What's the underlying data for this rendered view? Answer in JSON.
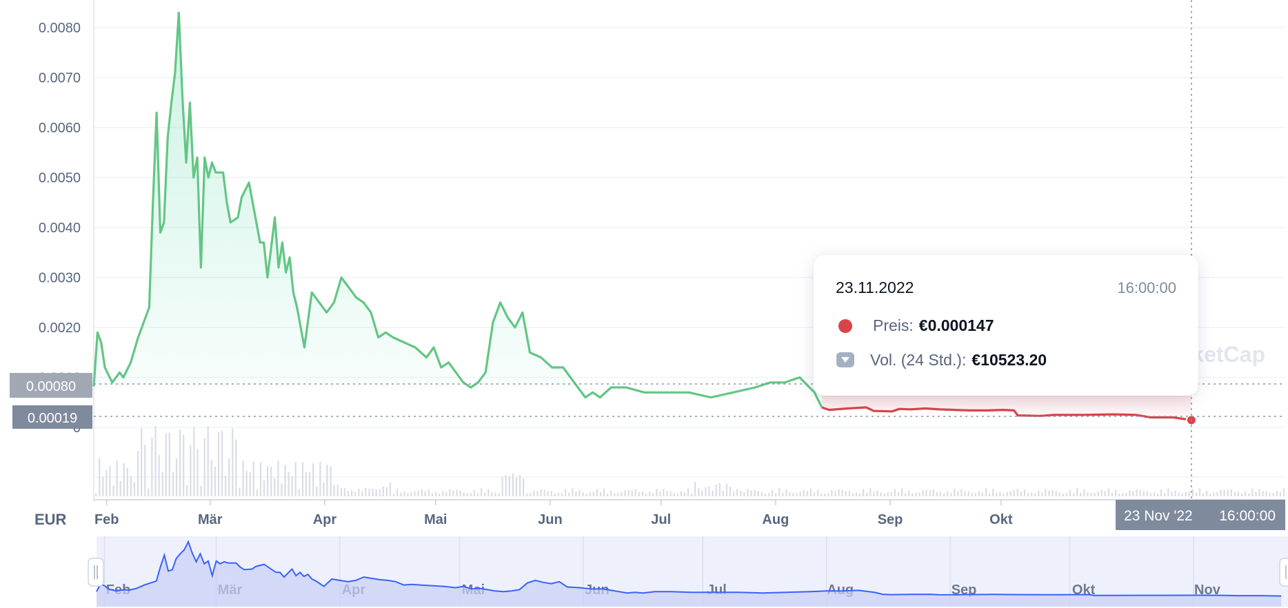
{
  "chart_data": {
    "type": "line",
    "currency_label": "EUR",
    "y_ticks": [
      "0.0080",
      "0.0070",
      "0.0060",
      "0.0050",
      "0.0040",
      "0.0030",
      "0.0020",
      "0.0010",
      "0"
    ],
    "x_ticks": [
      "Feb",
      "Mär",
      "Apr",
      "Mai",
      "Jun",
      "Jul",
      "Aug",
      "Sep",
      "Okt"
    ],
    "navigator_ticks": [
      "Feb",
      "Mär",
      "Apr",
      "Mai",
      "Jun",
      "Jul",
      "Aug",
      "Sep",
      "Okt",
      "Nov"
    ],
    "ylim": [
      0,
      0.0085
    ],
    "price_series": [
      [
        "2022-01-30",
        0.00082
      ],
      [
        "2022-01-31",
        0.0019
      ],
      [
        "2022-02-01",
        0.0017
      ],
      [
        "2022-02-02",
        0.0012
      ],
      [
        "2022-02-04",
        0.0009
      ],
      [
        "2022-02-06",
        0.0011
      ],
      [
        "2022-02-07",
        0.001
      ],
      [
        "2022-02-09",
        0.0013
      ],
      [
        "2022-02-11",
        0.0018
      ],
      [
        "2022-02-12",
        0.002
      ],
      [
        "2022-02-14",
        0.0024
      ],
      [
        "2022-02-15",
        0.0045
      ],
      [
        "2022-02-16",
        0.0063
      ],
      [
        "2022-02-17",
        0.0039
      ],
      [
        "2022-02-18",
        0.0041
      ],
      [
        "2022-02-19",
        0.0058
      ],
      [
        "2022-02-20",
        0.0065
      ],
      [
        "2022-02-21",
        0.0071
      ],
      [
        "2022-02-22",
        0.0083
      ],
      [
        "2022-02-23",
        0.0066
      ],
      [
        "2022-02-24",
        0.0053
      ],
      [
        "2022-02-25",
        0.0065
      ],
      [
        "2022-02-26",
        0.005
      ],
      [
        "2022-02-27",
        0.0054
      ],
      [
        "2022-02-28",
        0.0032
      ],
      [
        "2022-03-01",
        0.0054
      ],
      [
        "2022-03-02",
        0.005
      ],
      [
        "2022-03-03",
        0.0053
      ],
      [
        "2022-03-04",
        0.0051
      ],
      [
        "2022-03-06",
        0.0051
      ],
      [
        "2022-03-07",
        0.0045
      ],
      [
        "2022-03-08",
        0.0041
      ],
      [
        "2022-03-10",
        0.0042
      ],
      [
        "2022-03-11",
        0.0046
      ],
      [
        "2022-03-13",
        0.0049
      ],
      [
        "2022-03-15",
        0.0041
      ],
      [
        "2022-03-16",
        0.0037
      ],
      [
        "2022-03-17",
        0.0037
      ],
      [
        "2022-03-18",
        0.003
      ],
      [
        "2022-03-19",
        0.0036
      ],
      [
        "2022-03-20",
        0.0042
      ],
      [
        "2022-03-21",
        0.0032
      ],
      [
        "2022-03-22",
        0.0037
      ],
      [
        "2022-03-23",
        0.0031
      ],
      [
        "2022-03-24",
        0.0034
      ],
      [
        "2022-03-25",
        0.0027
      ],
      [
        "2022-03-26",
        0.0024
      ],
      [
        "2022-03-28",
        0.0016
      ],
      [
        "2022-03-30",
        0.0027
      ],
      [
        "2022-04-01",
        0.0025
      ],
      [
        "2022-04-03",
        0.0023
      ],
      [
        "2022-04-05",
        0.0025
      ],
      [
        "2022-04-07",
        0.003
      ],
      [
        "2022-04-09",
        0.0028
      ],
      [
        "2022-04-11",
        0.0026
      ],
      [
        "2022-04-13",
        0.0025
      ],
      [
        "2022-04-15",
        0.0023
      ],
      [
        "2022-04-17",
        0.0018
      ],
      [
        "2022-04-19",
        0.0019
      ],
      [
        "2022-04-21",
        0.0018
      ],
      [
        "2022-04-24",
        0.0017
      ],
      [
        "2022-04-27",
        0.0016
      ],
      [
        "2022-04-30",
        0.0014
      ],
      [
        "2022-05-02",
        0.0016
      ],
      [
        "2022-05-04",
        0.0012
      ],
      [
        "2022-05-06",
        0.0013
      ],
      [
        "2022-05-08",
        0.0011
      ],
      [
        "2022-05-10",
        0.0009
      ],
      [
        "2022-05-12",
        0.0008
      ],
      [
        "2022-05-14",
        0.0009
      ],
      [
        "2022-05-16",
        0.0011
      ],
      [
        "2022-05-18",
        0.0021
      ],
      [
        "2022-05-20",
        0.0025
      ],
      [
        "2022-05-22",
        0.0022
      ],
      [
        "2022-05-24",
        0.002
      ],
      [
        "2022-05-26",
        0.0023
      ],
      [
        "2022-05-28",
        0.0015
      ],
      [
        "2022-05-31",
        0.0014
      ],
      [
        "2022-06-03",
        0.0012
      ],
      [
        "2022-06-06",
        0.0012
      ],
      [
        "2022-06-09",
        0.0009
      ],
      [
        "2022-06-12",
        0.0006
      ],
      [
        "2022-06-14",
        0.0007
      ],
      [
        "2022-06-16",
        0.0006
      ],
      [
        "2022-06-19",
        0.0008
      ],
      [
        "2022-06-23",
        0.0008
      ],
      [
        "2022-06-28",
        0.0007
      ],
      [
        "2022-07-04",
        0.0007
      ],
      [
        "2022-07-10",
        0.0007
      ],
      [
        "2022-07-16",
        0.0006
      ],
      [
        "2022-07-22",
        0.0007
      ],
      [
        "2022-07-28",
        0.0008
      ],
      [
        "2022-08-01",
        0.0009
      ],
      [
        "2022-08-05",
        0.0009
      ],
      [
        "2022-08-09",
        0.001
      ],
      [
        "2022-08-13",
        0.0007
      ],
      [
        "2022-08-15",
        0.0004
      ],
      [
        "2022-08-17",
        0.00035
      ],
      [
        "2022-08-22",
        0.00038
      ],
      [
        "2022-08-27",
        0.0004
      ],
      [
        "2022-08-29",
        0.00033
      ],
      [
        "2022-09-03",
        0.00032
      ],
      [
        "2022-09-05",
        0.00037
      ],
      [
        "2022-09-08",
        0.00036
      ],
      [
        "2022-09-12",
        0.00038
      ],
      [
        "2022-09-16",
        0.00036
      ],
      [
        "2022-09-20",
        0.00035
      ],
      [
        "2022-09-24",
        0.00034
      ],
      [
        "2022-09-29",
        0.00034
      ],
      [
        "2022-10-03",
        0.00035
      ],
      [
        "2022-10-06",
        0.00034
      ],
      [
        "2022-10-07",
        0.00024
      ],
      [
        "2022-10-13",
        0.00023
      ],
      [
        "2022-10-17",
        0.00025
      ],
      [
        "2022-10-25",
        0.00025
      ],
      [
        "2022-11-02",
        0.00026
      ],
      [
        "2022-11-08",
        0.00025
      ],
      [
        "2022-11-12",
        0.0002
      ],
      [
        "2022-11-18",
        0.0002
      ],
      [
        "2022-11-23",
        0.000147
      ]
    ],
    "rise_color": "#16c784",
    "line_color_up": "#62c684",
    "line_color_down": "#d9434a",
    "crosshair_price_high": "0.00080",
    "crosshair_price_low": "0.00019",
    "crosshair_date": "23 Nov '22",
    "crosshair_time": "16:00:00",
    "watermark": "ketCap"
  },
  "tooltip": {
    "date": "23.11.2022",
    "time": "16:00:00",
    "price_label": "Preis:",
    "price_value": "€0.000147",
    "volume_label": "Vol. (24 Std.):",
    "volume_value": "€10523.20"
  }
}
